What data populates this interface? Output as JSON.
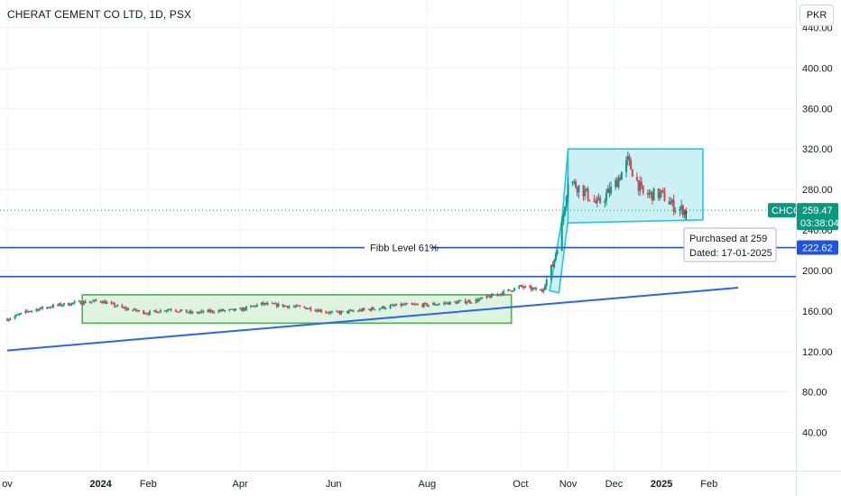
{
  "header": {
    "symbol_title": "CHERAT CEMENT CO LTD, 1D, PSX",
    "currency": "PKR"
  },
  "colors": {
    "up": "#089981",
    "down": "#f23645",
    "trend_line": "#2962ff",
    "level_line": "#1e53e5",
    "green_box_fill": "#d9f2d9",
    "green_box_stroke": "#4caf50",
    "cyan_box_fill": "#c6f0f4",
    "cyan_box_stroke": "#26c6da",
    "price_tag": "#089981",
    "fibb_tag": "#1e53e5"
  },
  "chart_data": {
    "type": "candlestick",
    "title": "CHERAT CEMENT CO LTD, 1D, PSX",
    "ylim": [
      0,
      440
    ],
    "y_ticks": [
      40,
      80,
      120,
      160,
      200,
      240,
      280,
      320,
      360,
      400,
      440
    ],
    "y_tick_labels": [
      "40.00",
      "80.00",
      "120.00",
      "160.00",
      "200.00",
      "240.00",
      "280.00",
      "320.00",
      "360.00",
      "400.00",
      "440.00"
    ],
    "x_range": [
      "2023-11-01",
      "2025-02-20"
    ],
    "x_ticks": [
      {
        "date": "2023-11-01",
        "label": "ov",
        "bold": false
      },
      {
        "date": "2024-01-01",
        "label": "2024",
        "bold": true
      },
      {
        "date": "2024-02-01",
        "label": "Feb",
        "bold": false
      },
      {
        "date": "2024-04-01",
        "label": "Apr",
        "bold": false
      },
      {
        "date": "2024-06-01",
        "label": "Jun",
        "bold": false
      },
      {
        "date": "2024-08-01",
        "label": "Aug",
        "bold": false
      },
      {
        "date": "2024-10-01",
        "label": "Oct",
        "bold": false
      },
      {
        "date": "2024-11-01",
        "label": "Nov",
        "bold": false
      },
      {
        "date": "2024-12-01",
        "label": "Dec",
        "bold": false
      },
      {
        "date": "2025-01-01",
        "label": "2025",
        "bold": true
      },
      {
        "date": "2025-02-01",
        "label": "Feb",
        "bold": false
      }
    ],
    "price_path": [
      [
        "2023-11-01",
        152
      ],
      [
        "2023-11-15",
        160
      ],
      [
        "2023-12-01",
        165
      ],
      [
        "2023-12-15",
        168
      ],
      [
        "2024-01-01",
        170
      ],
      [
        "2024-01-15",
        163
      ],
      [
        "2024-02-01",
        158
      ],
      [
        "2024-02-15",
        162
      ],
      [
        "2024-03-01",
        158
      ],
      [
        "2024-03-15",
        160
      ],
      [
        "2024-04-01",
        161
      ],
      [
        "2024-04-15",
        167
      ],
      [
        "2024-05-01",
        165
      ],
      [
        "2024-05-15",
        163
      ],
      [
        "2024-06-01",
        158
      ],
      [
        "2024-06-15",
        160
      ],
      [
        "2024-07-01",
        163
      ],
      [
        "2024-07-15",
        166
      ],
      [
        "2024-08-01",
        166
      ],
      [
        "2024-08-15",
        168
      ],
      [
        "2024-09-01",
        170
      ],
      [
        "2024-09-15",
        176
      ],
      [
        "2024-10-01",
        184
      ],
      [
        "2024-10-15",
        180
      ],
      [
        "2024-10-22",
        205
      ],
      [
        "2024-10-28",
        245
      ],
      [
        "2024-11-01",
        290
      ],
      [
        "2024-11-10",
        280
      ],
      [
        "2024-11-20",
        265
      ],
      [
        "2024-12-01",
        283
      ],
      [
        "2024-12-10",
        308
      ],
      [
        "2024-12-20",
        275
      ],
      [
        "2025-01-01",
        275
      ],
      [
        "2025-01-10",
        262
      ],
      [
        "2025-01-17",
        259
      ]
    ],
    "last_price": {
      "label": "CHCC",
      "value": "259.47",
      "countdown": "03:38:04",
      "y": 259.47
    },
    "current_price_line": 259.47,
    "horizontal_levels": [
      {
        "name": "Fibb Level 61%",
        "y": 222.62,
        "tag": "222.62"
      },
      {
        "name": "",
        "y": 194
      }
    ],
    "trend_line": {
      "from": [
        "2023-11-01",
        121
      ],
      "to": [
        "2025-02-20",
        183
      ]
    },
    "green_box": {
      "from": "2023-12-20",
      "to": "2024-09-25",
      "low": 148,
      "high": 176
    },
    "cyan_box": {
      "from": "2024-11-01",
      "to": "2025-01-28",
      "low": 250,
      "high": 320
    },
    "cyan_flag": {
      "points": [
        [
          "2024-10-20",
          180
        ],
        [
          "2024-10-28",
          250
        ],
        [
          "2024-11-01",
          320
        ],
        [
          "2024-11-01",
          250
        ],
        [
          "2024-10-26",
          178
        ]
      ]
    },
    "annotation": {
      "line1": "Purchased at 259",
      "line2": "Dated: 17-01-2025",
      "date": "2025-01-17",
      "y": 259
    }
  }
}
